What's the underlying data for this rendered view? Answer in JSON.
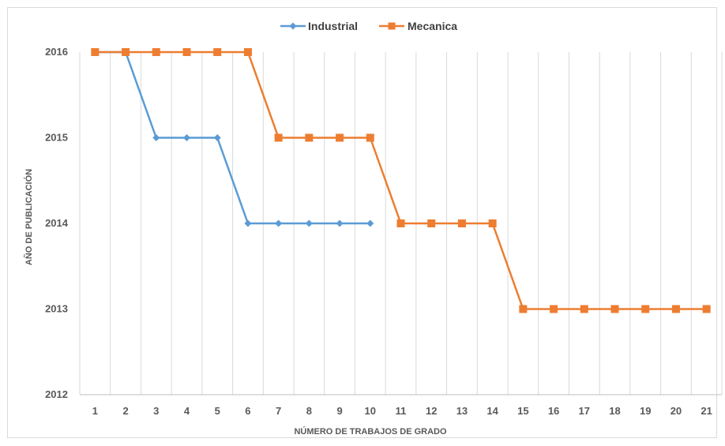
{
  "chart_data": {
    "type": "line",
    "title": "",
    "xlabel": "NÚMERO DE TRABAJOS DE GRADO",
    "ylabel": "AÑO DE PUBLICACIÓN",
    "x": [
      1,
      2,
      3,
      4,
      5,
      6,
      7,
      8,
      9,
      10,
      11,
      12,
      13,
      14,
      15,
      16,
      17,
      18,
      19,
      20,
      21
    ],
    "xticks": [
      "1",
      "2",
      "3",
      "4",
      "5",
      "6",
      "7",
      "8",
      "9",
      "10",
      "11",
      "12",
      "13",
      "14",
      "15",
      "16",
      "17",
      "18",
      "19",
      "20",
      "21"
    ],
    "ylim": [
      2012,
      2016
    ],
    "yticks": [
      "2012",
      "2013",
      "2014",
      "2015",
      "2016"
    ],
    "grid": "vertical",
    "legend": "top-center",
    "series": [
      {
        "name": "Industrial",
        "color": "#5b9bd5",
        "marker": "diamond",
        "x": [
          1,
          2,
          3,
          4,
          5,
          6,
          7,
          8,
          9,
          10
        ],
        "values": [
          2016,
          2016,
          2015,
          2015,
          2015,
          2014,
          2014,
          2014,
          2014,
          2014
        ]
      },
      {
        "name": "Mecanica",
        "color": "#ed7d31",
        "marker": "square",
        "x": [
          1,
          2,
          3,
          4,
          5,
          6,
          7,
          8,
          9,
          10,
          11,
          12,
          13,
          14,
          15,
          16,
          17,
          18,
          19,
          20,
          21
        ],
        "values": [
          2016,
          2016,
          2016,
          2016,
          2016,
          2016,
          2015,
          2015,
          2015,
          2015,
          2014,
          2014,
          2014,
          2014,
          2013,
          2013,
          2013,
          2013,
          2013,
          2013,
          2013
        ]
      }
    ]
  }
}
